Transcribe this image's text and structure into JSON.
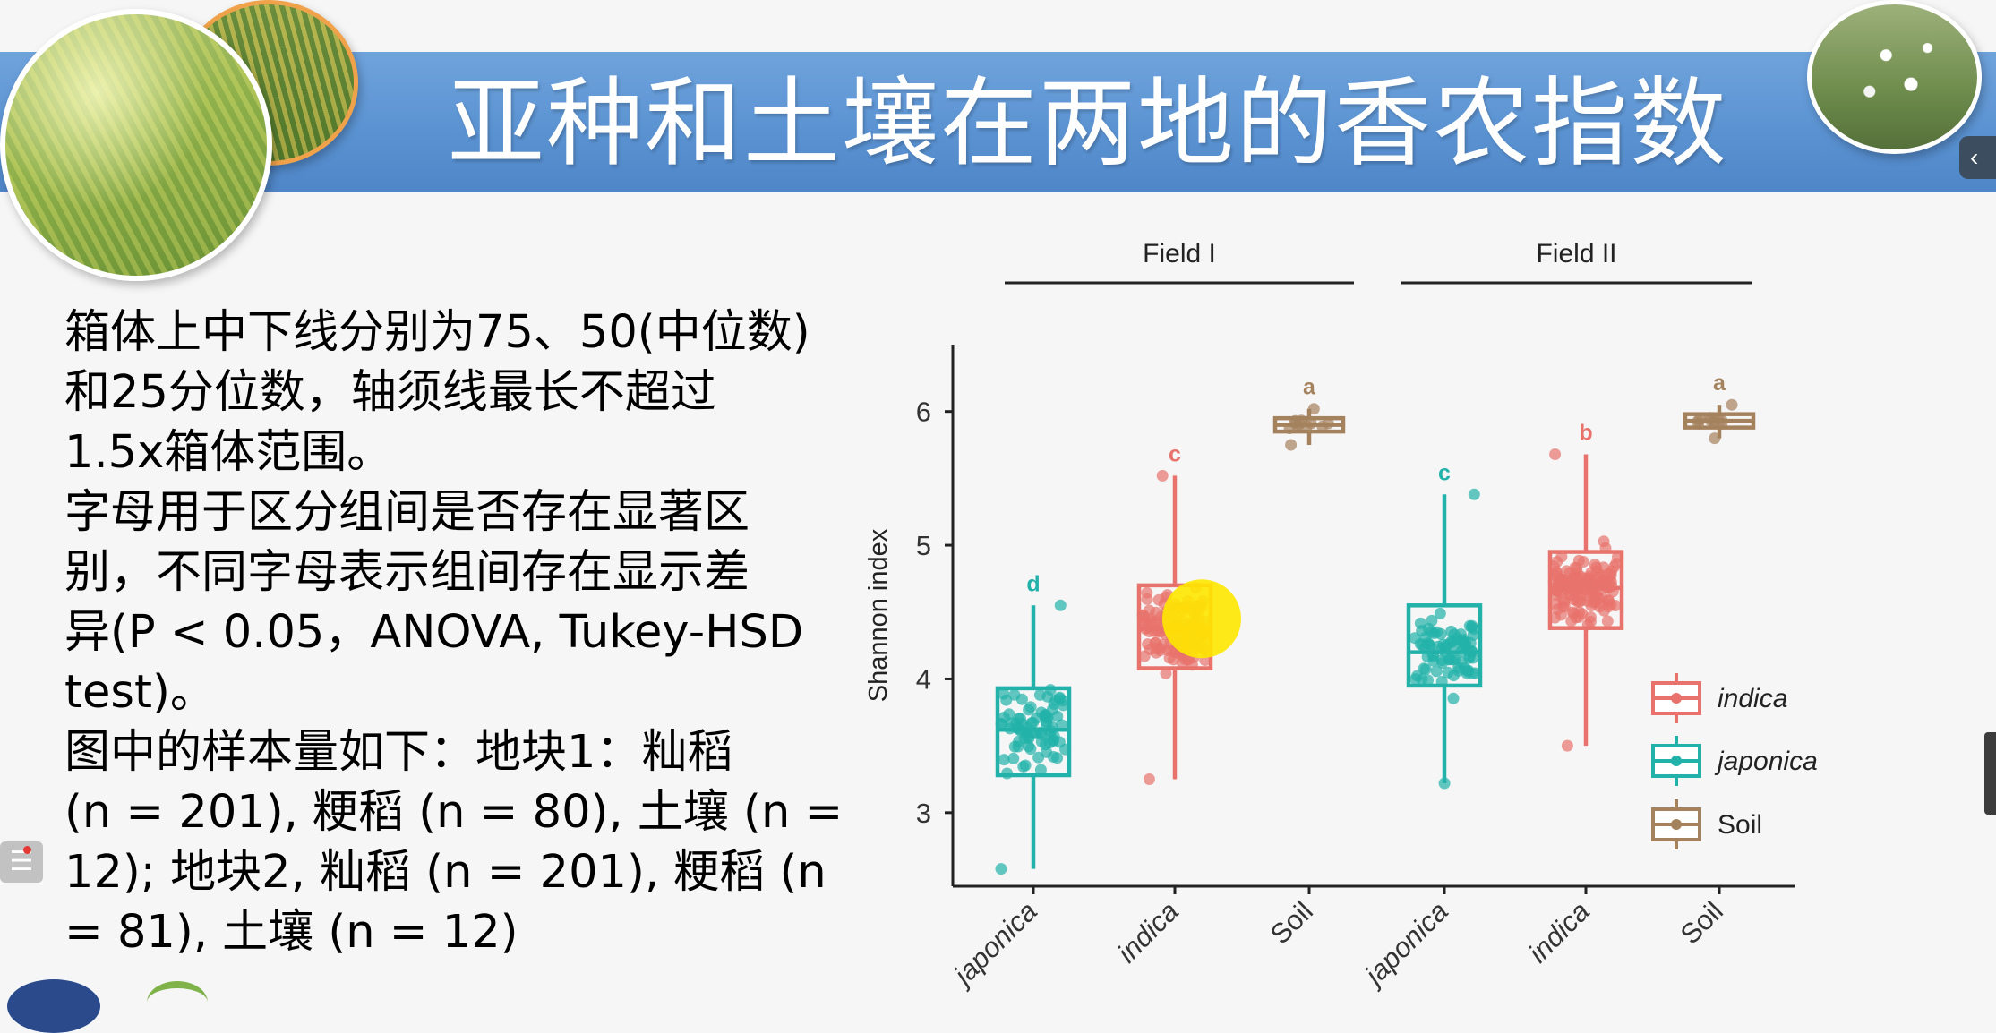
{
  "title": "亚种和土壤在两地的香农指数",
  "description": [
    "箱体上中下线分别为75、50(中位数)",
    "和25分位数，轴须线最长不超过",
    "1.5x箱体范围。",
    "字母用于区分组间是否存在显著区",
    "别，不同字母表示组间存在显示差",
    "异(P < 0.05，ANOVA, Tukey-HSD",
    "test)。",
    "图中的样本量如下：地块1：籼稻",
    "(n = 201), 粳稻 (n = 80), 土壤 (n =",
    "12); 地块2, 籼稻 (n = 201), 粳稻 (n",
    "= 81), 土壤 (n = 12)"
  ],
  "ui": {
    "nav_glyph": "‹",
    "menu_glyph": "☰"
  },
  "colors": {
    "indica": "#E8736C",
    "japonica": "#22B2AA",
    "soil": "#A5825E",
    "banner": "#5b93d2",
    "highlight": "#FFE800"
  },
  "icons": [
    "wheat-photo",
    "rice-photo",
    "flower-photo",
    "chevron-left-icon",
    "menu-icon",
    "university-logo",
    "leaf-logo"
  ],
  "chart_data": {
    "type": "box",
    "ylabel": "Shannon index",
    "ylim": [
      2.45,
      6.5
    ],
    "yticks": [
      3,
      4,
      5,
      6
    ],
    "facets": [
      "Field I",
      "Field II"
    ],
    "legend": {
      "position": "right",
      "entries": [
        "indica",
        "japonica",
        "Soil"
      ]
    },
    "highlight": {
      "x_index": 1,
      "y": 4.45
    },
    "groups": [
      {
        "facet": "Field I",
        "label": "japonica",
        "series": "japonica",
        "n": 80,
        "min": 2.58,
        "q1": 3.28,
        "median": 3.62,
        "q3": 3.93,
        "max": 4.55,
        "letter": "d"
      },
      {
        "facet": "Field I",
        "label": "indica",
        "series": "indica",
        "n": 201,
        "min": 3.25,
        "q1": 4.08,
        "median": 4.37,
        "q3": 4.7,
        "max": 5.52,
        "letter": "c"
      },
      {
        "facet": "Field I",
        "label": "Soil",
        "series": "soil",
        "n": 12,
        "min": 5.75,
        "q1": 5.85,
        "median": 5.9,
        "q3": 5.95,
        "max": 6.02,
        "letter": "a"
      },
      {
        "facet": "Field II",
        "label": "japonica",
        "series": "japonica",
        "n": 81,
        "min": 3.22,
        "q1": 3.95,
        "median": 4.2,
        "q3": 4.55,
        "max": 5.38,
        "letter": "c"
      },
      {
        "facet": "Field II",
        "label": "indica",
        "series": "indica",
        "n": 201,
        "min": 3.5,
        "q1": 4.38,
        "median": 4.68,
        "q3": 4.95,
        "max": 5.68,
        "letter": "b"
      },
      {
        "facet": "Field II",
        "label": "Soil",
        "series": "soil",
        "n": 12,
        "min": 5.8,
        "q1": 5.88,
        "median": 5.93,
        "q3": 5.98,
        "max": 6.05,
        "letter": "a"
      }
    ]
  }
}
